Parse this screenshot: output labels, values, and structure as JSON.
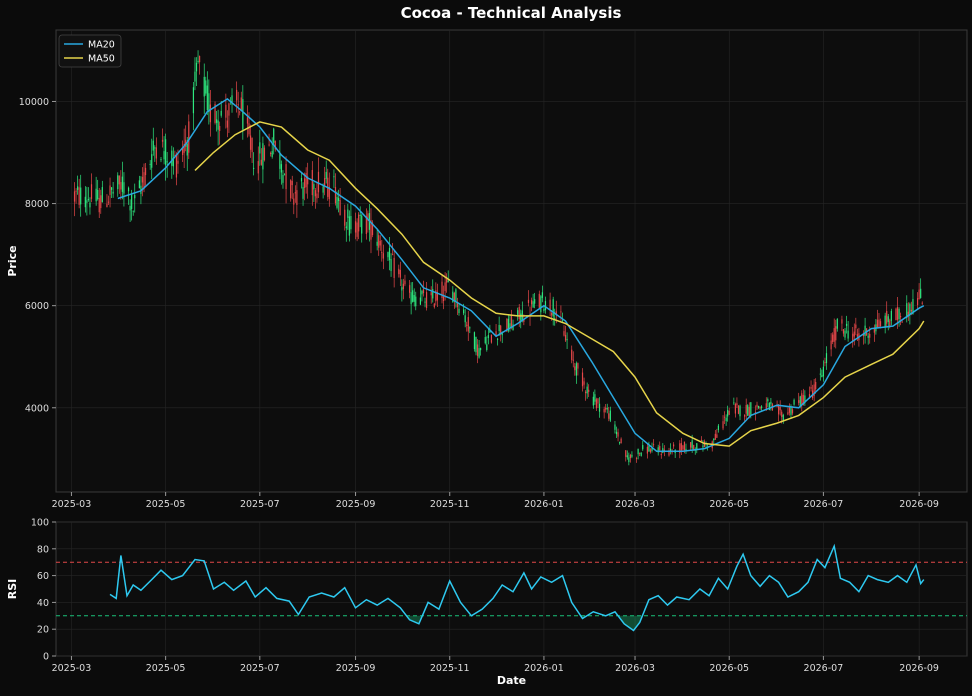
{
  "title": "Cocoa - Technical Analysis",
  "colors": {
    "background": "#0b0b0b",
    "panel": "#0d0d0d",
    "grid": "#262626",
    "axis_text": "#dddddd",
    "up": "#2ee87f",
    "down": "#e8484a",
    "ma20": "#29a8e0",
    "ma50": "#e6d44a",
    "rsi": "#2ec9f0",
    "overbought": "#e04848",
    "oversold": "#19c17a"
  },
  "chart_data": [
    {
      "type": "candlestick",
      "ylabel": "Price",
      "ylim": [
        2350,
        11400
      ],
      "yticks": [
        4000,
        6000,
        8000,
        10000
      ],
      "x_range": [
        "2025-02-19",
        "2026-10-02"
      ],
      "xticks": [
        "2025-03",
        "2025-05",
        "2025-07",
        "2025-09",
        "2025-11",
        "2026-01",
        "2026-03",
        "2026-05",
        "2026-07",
        "2026-09"
      ],
      "grid": true,
      "legend_position": "top-left",
      "legend": [
        "MA20",
        "MA50"
      ],
      "candles_start": "2025-03-03",
      "candle_step_days": 1,
      "close_path": [
        [
          "2025-03-03",
          8150
        ],
        [
          "2025-03-10",
          8150
        ],
        [
          "2025-03-20",
          8050
        ],
        [
          "2025-04-05",
          8400
        ],
        [
          "2025-04-10",
          7900
        ],
        [
          "2025-04-25",
          9200
        ],
        [
          "2025-05-08",
          8800
        ],
        [
          "2025-05-16",
          9300
        ],
        [
          "2025-05-22",
          10700
        ],
        [
          "2025-05-30",
          9800
        ],
        [
          "2025-06-08",
          9700
        ],
        [
          "2025-06-18",
          9950
        ],
        [
          "2025-06-28",
          8800
        ],
        [
          "2025-07-10",
          9200
        ],
        [
          "2025-07-22",
          8200
        ],
        [
          "2025-08-05",
          8400
        ],
        [
          "2025-08-18",
          8350
        ],
        [
          "2025-08-28",
          7600
        ],
        [
          "2025-09-10",
          7600
        ],
        [
          "2025-09-22",
          6950
        ],
        [
          "2025-10-05",
          6200
        ],
        [
          "2025-10-20",
          6100
        ],
        [
          "2025-11-01",
          6400
        ],
        [
          "2025-11-08",
          6000
        ],
        [
          "2025-11-20",
          5100
        ],
        [
          "2025-11-30",
          5500
        ],
        [
          "2025-12-10",
          5600
        ],
        [
          "2025-12-20",
          5900
        ],
        [
          "2026-01-01",
          6100
        ],
        [
          "2026-01-10",
          5900
        ],
        [
          "2026-01-20",
          4900
        ],
        [
          "2026-02-01",
          4200
        ],
        [
          "2026-02-12",
          3900
        ],
        [
          "2026-02-24",
          3000
        ],
        [
          "2026-03-08",
          3200
        ],
        [
          "2026-03-22",
          3150
        ],
        [
          "2026-04-05",
          3250
        ],
        [
          "2026-04-20",
          3300
        ],
        [
          "2026-05-02",
          4000
        ],
        [
          "2026-05-10",
          3950
        ],
        [
          "2026-05-25",
          4050
        ],
        [
          "2026-06-05",
          3850
        ],
        [
          "2026-06-15",
          4100
        ],
        [
          "2026-06-28",
          4450
        ],
        [
          "2026-07-10",
          5600
        ],
        [
          "2026-07-25",
          5400
        ],
        [
          "2026-08-10",
          5700
        ],
        [
          "2026-08-22",
          5850
        ],
        [
          "2026-09-03",
          6200
        ]
      ],
      "series": [
        {
          "name": "MA20",
          "points": [
            [
              "2025-03-31",
              8100
            ],
            [
              "2025-04-15",
              8250
            ],
            [
              "2025-05-01",
              8700
            ],
            [
              "2025-05-15",
              9200
            ],
            [
              "2025-05-28",
              9800
            ],
            [
              "2025-06-10",
              10050
            ],
            [
              "2025-06-20",
              9800
            ],
            [
              "2025-07-01",
              9500
            ],
            [
              "2025-07-15",
              8950
            ],
            [
              "2025-08-01",
              8500
            ],
            [
              "2025-08-15",
              8300
            ],
            [
              "2025-09-01",
              7950
            ],
            [
              "2025-09-15",
              7500
            ],
            [
              "2025-10-01",
              6900
            ],
            [
              "2025-10-15",
              6350
            ],
            [
              "2025-11-01",
              6150
            ],
            [
              "2025-11-15",
              5900
            ],
            [
              "2025-12-01",
              5400
            ],
            [
              "2025-12-15",
              5650
            ],
            [
              "2026-01-01",
              6000
            ],
            [
              "2026-01-15",
              5700
            ],
            [
              "2026-02-01",
              4900
            ],
            [
              "2026-02-15",
              4200
            ],
            [
              "2026-03-01",
              3500
            ],
            [
              "2026-03-15",
              3150
            ],
            [
              "2026-04-01",
              3150
            ],
            [
              "2026-04-15",
              3200
            ],
            [
              "2026-05-01",
              3400
            ],
            [
              "2026-05-15",
              3850
            ],
            [
              "2026-06-01",
              4050
            ],
            [
              "2026-06-15",
              4000
            ],
            [
              "2026-07-01",
              4450
            ],
            [
              "2026-07-15",
              5200
            ],
            [
              "2026-08-01",
              5550
            ],
            [
              "2026-08-15",
              5600
            ],
            [
              "2026-09-01",
              5950
            ],
            [
              "2026-09-04",
              6000
            ]
          ]
        },
        {
          "name": "MA50",
          "points": [
            [
              "2025-05-20",
              8650
            ],
            [
              "2025-06-01",
              9000
            ],
            [
              "2025-06-15",
              9350
            ],
            [
              "2025-07-01",
              9600
            ],
            [
              "2025-07-15",
              9500
            ],
            [
              "2025-08-01",
              9050
            ],
            [
              "2025-08-15",
              8850
            ],
            [
              "2025-09-01",
              8300
            ],
            [
              "2025-09-15",
              7900
            ],
            [
              "2025-10-01",
              7400
            ],
            [
              "2025-10-15",
              6850
            ],
            [
              "2025-11-01",
              6500
            ],
            [
              "2025-11-15",
              6150
            ],
            [
              "2025-12-01",
              5850
            ],
            [
              "2025-12-15",
              5800
            ],
            [
              "2026-01-01",
              5800
            ],
            [
              "2026-01-15",
              5650
            ],
            [
              "2026-02-01",
              5350
            ],
            [
              "2026-02-15",
              5100
            ],
            [
              "2026-03-01",
              4600
            ],
            [
              "2026-03-15",
              3900
            ],
            [
              "2026-04-01",
              3500
            ],
            [
              "2026-04-15",
              3300
            ],
            [
              "2026-05-01",
              3250
            ],
            [
              "2026-05-15",
              3550
            ],
            [
              "2026-06-01",
              3700
            ],
            [
              "2026-06-15",
              3850
            ],
            [
              "2026-07-01",
              4200
            ],
            [
              "2026-07-15",
              4600
            ],
            [
              "2026-08-01",
              4850
            ],
            [
              "2026-08-15",
              5050
            ],
            [
              "2026-09-01",
              5550
            ],
            [
              "2026-09-04",
              5700
            ]
          ]
        }
      ]
    },
    {
      "type": "line",
      "ylabel": "RSI",
      "xlabel": "Date",
      "ylim": [
        0,
        100
      ],
      "yticks": [
        0,
        20,
        40,
        60,
        80,
        100
      ],
      "xticks": [
        "2025-03",
        "2025-05",
        "2025-07",
        "2025-09",
        "2025-11",
        "2026-01",
        "2026-03",
        "2026-05",
        "2026-07",
        "2026-09"
      ],
      "reference_lines": [
        70,
        30
      ],
      "grid": true,
      "series": [
        {
          "name": "RSI",
          "points": [
            [
              "2025-03-26",
              46
            ],
            [
              "2025-03-30",
              43
            ],
            [
              "2025-04-02",
              75
            ],
            [
              "2025-04-06",
              45
            ],
            [
              "2025-04-10",
              53
            ],
            [
              "2025-04-15",
              49
            ],
            [
              "2025-04-22",
              57
            ],
            [
              "2025-04-28",
              64
            ],
            [
              "2025-05-05",
              57
            ],
            [
              "2025-05-12",
              60
            ],
            [
              "2025-05-20",
              72
            ],
            [
              "2025-05-26",
              71
            ],
            [
              "2025-06-01",
              50
            ],
            [
              "2025-06-08",
              55
            ],
            [
              "2025-06-14",
              49
            ],
            [
              "2025-06-22",
              56
            ],
            [
              "2025-06-28",
              44
            ],
            [
              "2025-07-05",
              51
            ],
            [
              "2025-07-12",
              43
            ],
            [
              "2025-07-20",
              41
            ],
            [
              "2025-07-26",
              31
            ],
            [
              "2025-08-02",
              44
            ],
            [
              "2025-08-10",
              47
            ],
            [
              "2025-08-18",
              44
            ],
            [
              "2025-08-25",
              51
            ],
            [
              "2025-09-01",
              36
            ],
            [
              "2025-09-08",
              42
            ],
            [
              "2025-09-15",
              38
            ],
            [
              "2025-09-22",
              43
            ],
            [
              "2025-09-30",
              36
            ],
            [
              "2025-10-06",
              27
            ],
            [
              "2025-10-12",
              24
            ],
            [
              "2025-10-18",
              40
            ],
            [
              "2025-10-25",
              35
            ],
            [
              "2025-11-01",
              56
            ],
            [
              "2025-11-08",
              40
            ],
            [
              "2025-11-15",
              30
            ],
            [
              "2025-11-22",
              35
            ],
            [
              "2025-11-29",
              43
            ],
            [
              "2025-12-05",
              53
            ],
            [
              "2025-12-12",
              48
            ],
            [
              "2025-12-19",
              62
            ],
            [
              "2025-12-24",
              50
            ],
            [
              "2025-12-30",
              59
            ],
            [
              "2026-01-06",
              55
            ],
            [
              "2026-01-13",
              60
            ],
            [
              "2026-01-19",
              40
            ],
            [
              "2026-01-26",
              28
            ],
            [
              "2026-02-02",
              33
            ],
            [
              "2026-02-10",
              30
            ],
            [
              "2026-02-16",
              33
            ],
            [
              "2026-02-22",
              24
            ],
            [
              "2026-02-28",
              19
            ],
            [
              "2026-03-04",
              25
            ],
            [
              "2026-03-10",
              42
            ],
            [
              "2026-03-16",
              45
            ],
            [
              "2026-03-22",
              38
            ],
            [
              "2026-03-28",
              44
            ],
            [
              "2026-04-05",
              42
            ],
            [
              "2026-04-12",
              50
            ],
            [
              "2026-04-18",
              45
            ],
            [
              "2026-04-24",
              58
            ],
            [
              "2026-04-30",
              50
            ],
            [
              "2026-05-06",
              67
            ],
            [
              "2026-05-10",
              76
            ],
            [
              "2026-05-15",
              60
            ],
            [
              "2026-05-21",
              52
            ],
            [
              "2026-05-27",
              60
            ],
            [
              "2026-06-02",
              55
            ],
            [
              "2026-06-08",
              44
            ],
            [
              "2026-06-15",
              48
            ],
            [
              "2026-06-21",
              55
            ],
            [
              "2026-06-27",
              72
            ],
            [
              "2026-07-02",
              66
            ],
            [
              "2026-07-08",
              82
            ],
            [
              "2026-07-12",
              58
            ],
            [
              "2026-07-18",
              55
            ],
            [
              "2026-07-24",
              48
            ],
            [
              "2026-07-30",
              60
            ],
            [
              "2026-08-05",
              57
            ],
            [
              "2026-08-12",
              55
            ],
            [
              "2026-08-18",
              60
            ],
            [
              "2026-08-24",
              55
            ],
            [
              "2026-08-30",
              68
            ],
            [
              "2026-09-02",
              54
            ],
            [
              "2026-09-04",
              57
            ]
          ]
        }
      ]
    }
  ]
}
